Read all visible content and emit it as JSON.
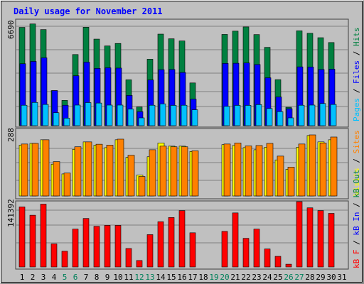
{
  "chart_data": [
    {
      "type": "bar",
      "title": "Daily usage for November 2011",
      "panel": "hits-files-pages",
      "ylabel_max": "6690",
      "ymax": 6690,
      "categories": [
        "1",
        "2",
        "3",
        "4",
        "5",
        "6",
        "7",
        "8",
        "9",
        "10",
        "11",
        "12",
        "13",
        "14",
        "15",
        "16",
        "17",
        "18",
        "19",
        "20",
        "21",
        "22",
        "23",
        "24",
        "25",
        "26",
        "27",
        "28",
        "29",
        "30",
        "31"
      ],
      "legend": [
        {
          "text": "Pages",
          "color": "#00C0FF"
        },
        {
          "text": " / ",
          "color": "#000000"
        },
        {
          "text": "Files",
          "color": "#0000FF"
        },
        {
          "text": " / ",
          "color": "#000000"
        },
        {
          "text": "Hits",
          "color": "#008040"
        }
      ],
      "series": [
        {
          "name": "Hits",
          "color": "#008040",
          "values": [
            6300,
            6520,
            6160,
            2250,
            1620,
            4560,
            6310,
            5550,
            5110,
            5270,
            2940,
            1200,
            4260,
            5870,
            5570,
            5430,
            2740,
            0,
            0,
            5850,
            6060,
            6330,
            5840,
            5020,
            2950,
            1180,
            6080,
            5920,
            5640,
            5330,
            0
          ]
        },
        {
          "name": "Files",
          "color": "#0000FF",
          "values": [
            3970,
            4120,
            4350,
            2250,
            1310,
            3200,
            4070,
            3670,
            3710,
            3690,
            1940,
            900,
            2930,
            3590,
            3600,
            3410,
            1700,
            0,
            0,
            3990,
            4000,
            4020,
            3920,
            3070,
            1840,
            1090,
            3770,
            3760,
            3600,
            3620,
            0
          ]
        },
        {
          "name": "Pages",
          "color": "#00C0FF",
          "values": [
            1310,
            1490,
            1360,
            830,
            480,
            1320,
            1480,
            1450,
            1320,
            1320,
            1060,
            500,
            1310,
            1400,
            1300,
            1310,
            1020,
            0,
            0,
            1240,
            1300,
            1300,
            1350,
            1100,
            900,
            500,
            1310,
            1320,
            1420,
            1360,
            0
          ]
        }
      ]
    },
    {
      "type": "bar",
      "panel": "visits-sites",
      "ylabel_max": "288",
      "ymax": 288,
      "categories": [
        "1",
        "2",
        "3",
        "4",
        "5",
        "6",
        "7",
        "8",
        "9",
        "10",
        "11",
        "12",
        "13",
        "14",
        "15",
        "16",
        "17",
        "18",
        "19",
        "20",
        "21",
        "22",
        "23",
        "24",
        "25",
        "26",
        "27",
        "28",
        "29",
        "30",
        "31"
      ],
      "legend": [
        {
          "text": "Visits",
          "color": "#FFFF00"
        },
        {
          "text": " / ",
          "color": "#000000"
        },
        {
          "text": "Sites",
          "color": "#FF8000"
        }
      ],
      "series": [
        {
          "name": "Visits",
          "color": "#FFFF00",
          "values": [
            240,
            248,
            265,
            150,
            104,
            220,
            255,
            240,
            228,
            265,
            182,
            98,
            185,
            250,
            235,
            235,
            210,
            0,
            0,
            242,
            238,
            228,
            218,
            230,
            170,
            126,
            230,
            285,
            255,
            265,
            0
          ]
        },
        {
          "name": "Sites",
          "color": "#FF8000",
          "values": [
            245,
            248,
            265,
            162,
            108,
            232,
            255,
            244,
            240,
            268,
            192,
            92,
            218,
            235,
            232,
            232,
            213,
            0,
            0,
            245,
            250,
            236,
            238,
            248,
            188,
            136,
            245,
            288,
            250,
            278,
            0
          ]
        }
      ]
    },
    {
      "type": "bar",
      "panel": "kbytes",
      "ylabel_max": "141392",
      "ymax": 141392,
      "categories": [
        "1",
        "2",
        "3",
        "4",
        "5",
        "6",
        "7",
        "8",
        "9",
        "10",
        "11",
        "12",
        "13",
        "14",
        "15",
        "16",
        "17",
        "18",
        "19",
        "20",
        "21",
        "22",
        "23",
        "24",
        "25",
        "26",
        "27",
        "28",
        "29",
        "30",
        "31"
      ],
      "weekend_days": [
        "5",
        "6",
        "12",
        "13",
        "19",
        "20",
        "26",
        "27"
      ],
      "legend": [
        {
          "text": "kB F",
          "color": "#FF0000"
        },
        {
          "text": " / ",
          "color": "#000000"
        },
        {
          "text": "kB In",
          "color": "#0000FF"
        },
        {
          "text": " / ",
          "color": "#000000"
        },
        {
          "text": "kB Out",
          "color": "#008040"
        }
      ],
      "series": [
        {
          "name": "kB F",
          "color": "#FF0000",
          "values": [
            130000,
            112000,
            136000,
            50000,
            34000,
            82000,
            105000,
            88000,
            90000,
            90000,
            40000,
            14000,
            70000,
            98000,
            107000,
            122000,
            74000,
            0,
            0,
            77000,
            117000,
            62000,
            82000,
            39000,
            23000,
            6000,
            141392,
            128000,
            122000,
            116000,
            0
          ]
        }
      ]
    }
  ]
}
